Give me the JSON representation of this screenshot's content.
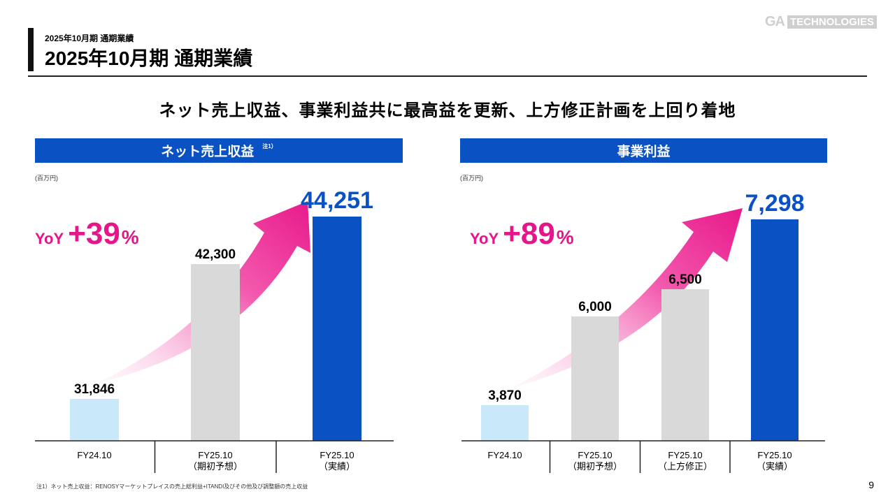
{
  "header": {
    "subtitle": "2025年10月期 通期業績",
    "title": "2025年10月期 通期業績",
    "logo": {
      "ga": "GA",
      "tech": "TECHNOLOGIES"
    }
  },
  "headline": "ネット売上収益、事業利益共に最高益を更新、上方修正計画を上回り着地",
  "colors": {
    "accent": "#0a52c4",
    "pink": "#e5168a",
    "prior": "#c9e9fb",
    "forecast": "#d9d9d9",
    "actual": "#0a52c4"
  },
  "chart_data": [
    {
      "type": "bar",
      "title": "ネット売上収益",
      "title_note": "注1）",
      "unit": "(百万円)",
      "yoy": {
        "label": "YoY",
        "value": "+39",
        "suffix": "%"
      },
      "categories": [
        "FY24.10",
        "FY25.10\n（期初予想）",
        "FY25.10\n（実績）"
      ],
      "values": [
        31846,
        42300,
        44251
      ],
      "value_labels": [
        "31,846",
        "42,300",
        "44,251"
      ],
      "bar_colors": [
        "#c9e9fb",
        "#d9d9d9",
        "#0a52c4"
      ]
    },
    {
      "type": "bar",
      "title": "事業利益",
      "unit": "(百万円)",
      "yoy": {
        "label": "YoY",
        "value": "+89",
        "suffix": "%"
      },
      "categories": [
        "FY24.10",
        "FY25.10\n（期初予想）",
        "FY25.10\n（上方修正）",
        "FY25.10\n（実績）"
      ],
      "values": [
        3870,
        6000,
        6500,
        7298
      ],
      "value_labels": [
        "3,870",
        "6,000",
        "6,500",
        "7,298"
      ],
      "bar_colors": [
        "#c9e9fb",
        "#d9d9d9",
        "#d9d9d9",
        "#0a52c4"
      ]
    }
  ],
  "footnote": "注1）ネット売上収益：RENOSYマーケットプレイスの売上総利益+ITANDI及びその他及び調整額の売上収益",
  "page_number": "9"
}
